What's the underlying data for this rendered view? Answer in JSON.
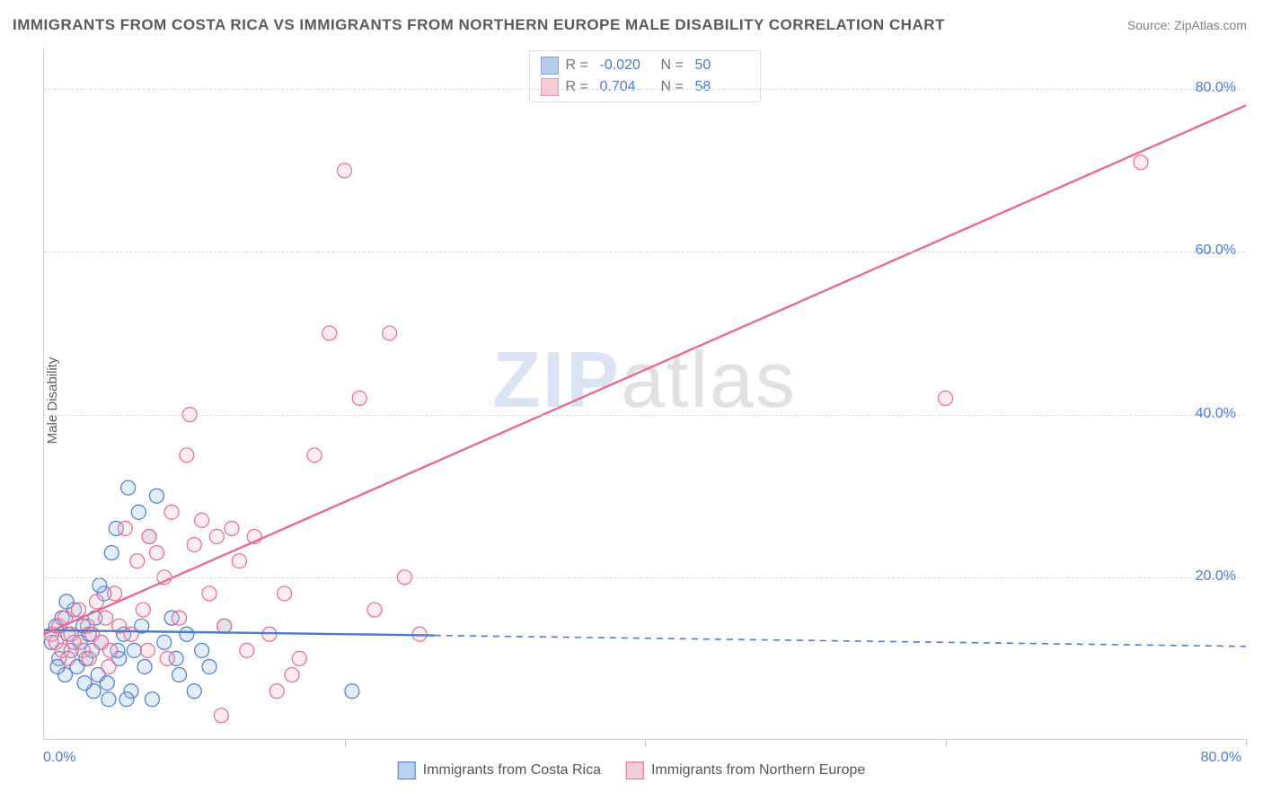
{
  "title": "IMMIGRANTS FROM COSTA RICA VS IMMIGRANTS FROM NORTHERN EUROPE MALE DISABILITY CORRELATION CHART",
  "source": "Source: ZipAtlas.com",
  "ylabel": "Male Disability",
  "watermark_z": "ZIP",
  "watermark_rest": "atlas",
  "chart": {
    "type": "scatter-with-trendlines",
    "background_color": "#ffffff",
    "grid_color": "#d8d8d8",
    "axis_color": "#d0d0d0",
    "tick_font_color": "#4a7bd0",
    "tick_fontsize": 16,
    "title_color": "#5a5a5a",
    "title_fontsize": 17,
    "ylabel_fontsize": 15,
    "ylabel_color": "#606060",
    "xlim": [
      0,
      80
    ],
    "ylim": [
      0,
      85
    ],
    "yticks": [
      20,
      40,
      60,
      80
    ],
    "ytick_labels": [
      "20.0%",
      "40.0%",
      "60.0%",
      "80.0%"
    ],
    "xtick_min_label": "0.0%",
    "xtick_max_label": "80.0%",
    "xgrid_positions": [
      20,
      40,
      60,
      80
    ],
    "marker_radius": 8,
    "marker_stroke_width": 1.2,
    "marker_fill_opacity": 0.28,
    "line_width": 2.4,
    "series": [
      {
        "name": "Immigrants from Costa Rica",
        "color_stroke": "#4a7bd0",
        "color_fill": "#9bb9e8",
        "R": "-0.020",
        "N": "50",
        "trend": {
          "x1": 0,
          "y1": 13.5,
          "x2": 80,
          "y2": 11.5,
          "solid_until_x": 26
        },
        "points": [
          [
            0.5,
            12
          ],
          [
            0.8,
            14
          ],
          [
            1.0,
            10
          ],
          [
            1.2,
            15
          ],
          [
            1.4,
            8
          ],
          [
            1.6,
            13
          ],
          [
            1.8,
            11
          ],
          [
            2.0,
            16
          ],
          [
            2.2,
            9
          ],
          [
            2.4,
            12
          ],
          [
            2.6,
            14
          ],
          [
            2.8,
            10
          ],
          [
            3.0,
            13
          ],
          [
            3.2,
            11
          ],
          [
            3.4,
            15
          ],
          [
            3.6,
            8
          ],
          [
            3.8,
            12
          ],
          [
            4.0,
            18
          ],
          [
            4.2,
            7
          ],
          [
            4.5,
            23
          ],
          [
            4.8,
            26
          ],
          [
            5.0,
            10
          ],
          [
            5.3,
            13
          ],
          [
            5.6,
            31
          ],
          [
            6.0,
            11
          ],
          [
            6.3,
            28
          ],
          [
            6.7,
            9
          ],
          [
            7.0,
            25
          ],
          [
            7.5,
            30
          ],
          [
            8.0,
            12
          ],
          [
            8.5,
            15
          ],
          [
            9.0,
            8
          ],
          [
            9.5,
            13
          ],
          [
            10.0,
            6
          ],
          [
            10.5,
            11
          ],
          [
            11.0,
            9
          ],
          [
            4.3,
            5
          ],
          [
            5.8,
            6
          ],
          [
            7.2,
            5
          ],
          [
            3.3,
            6
          ],
          [
            2.7,
            7
          ],
          [
            1.5,
            17
          ],
          [
            0.9,
            9
          ],
          [
            6.5,
            14
          ],
          [
            8.8,
            10
          ],
          [
            4.9,
            11
          ],
          [
            3.7,
            19
          ],
          [
            5.5,
            5
          ],
          [
            12.0,
            14
          ],
          [
            20.5,
            6
          ]
        ]
      },
      {
        "name": "Immigrants from Northern Europe",
        "color_stroke": "#e86a8f",
        "color_fill": "#f3b6c7",
        "R": "0.704",
        "N": "58",
        "trend": {
          "x1": 0,
          "y1": 13,
          "x2": 80,
          "y2": 78,
          "solid_until_x": 80
        },
        "points": [
          [
            0.5,
            13
          ],
          [
            0.8,
            12
          ],
          [
            1.0,
            14
          ],
          [
            1.2,
            11
          ],
          [
            1.4,
            15
          ],
          [
            1.6,
            10
          ],
          [
            1.8,
            13
          ],
          [
            2.0,
            12
          ],
          [
            2.3,
            16
          ],
          [
            2.6,
            11
          ],
          [
            2.9,
            14
          ],
          [
            3.2,
            13
          ],
          [
            3.5,
            17
          ],
          [
            3.8,
            12
          ],
          [
            4.1,
            15
          ],
          [
            4.4,
            11
          ],
          [
            4.7,
            18
          ],
          [
            5.0,
            14
          ],
          [
            5.4,
            26
          ],
          [
            5.8,
            13
          ],
          [
            6.2,
            22
          ],
          [
            6.6,
            16
          ],
          [
            7.0,
            25
          ],
          [
            7.5,
            23
          ],
          [
            8.0,
            20
          ],
          [
            8.5,
            28
          ],
          [
            9.0,
            15
          ],
          [
            9.5,
            35
          ],
          [
            10.0,
            24
          ],
          [
            10.5,
            27
          ],
          [
            11.0,
            18
          ],
          [
            11.5,
            25
          ],
          [
            12.0,
            14
          ],
          [
            12.5,
            26
          ],
          [
            13.0,
            22
          ],
          [
            13.5,
            11
          ],
          [
            14.0,
            25
          ],
          [
            15.0,
            13
          ],
          [
            16.0,
            18
          ],
          [
            17.0,
            10
          ],
          [
            18.0,
            35
          ],
          [
            19.0,
            50
          ],
          [
            20.0,
            70
          ],
          [
            21.0,
            42
          ],
          [
            22.0,
            16
          ],
          [
            23.0,
            50
          ],
          [
            24.0,
            20
          ],
          [
            25.0,
            13
          ],
          [
            15.5,
            6
          ],
          [
            16.5,
            8
          ],
          [
            8.2,
            10
          ],
          [
            9.7,
            40
          ],
          [
            11.8,
            3
          ],
          [
            60.0,
            42
          ],
          [
            73.0,
            71
          ],
          [
            6.9,
            11
          ],
          [
            3.0,
            10
          ],
          [
            4.3,
            9
          ]
        ]
      }
    ],
    "legend_bottom": [
      {
        "label": "Immigrants from Costa Rica",
        "swatch_fill": "#bcd0f0",
        "swatch_stroke": "#4a7bd0"
      },
      {
        "label": "Immigrants from Northern Europe",
        "swatch_fill": "#f5cdd8",
        "swatch_stroke": "#e86a8f"
      }
    ]
  }
}
